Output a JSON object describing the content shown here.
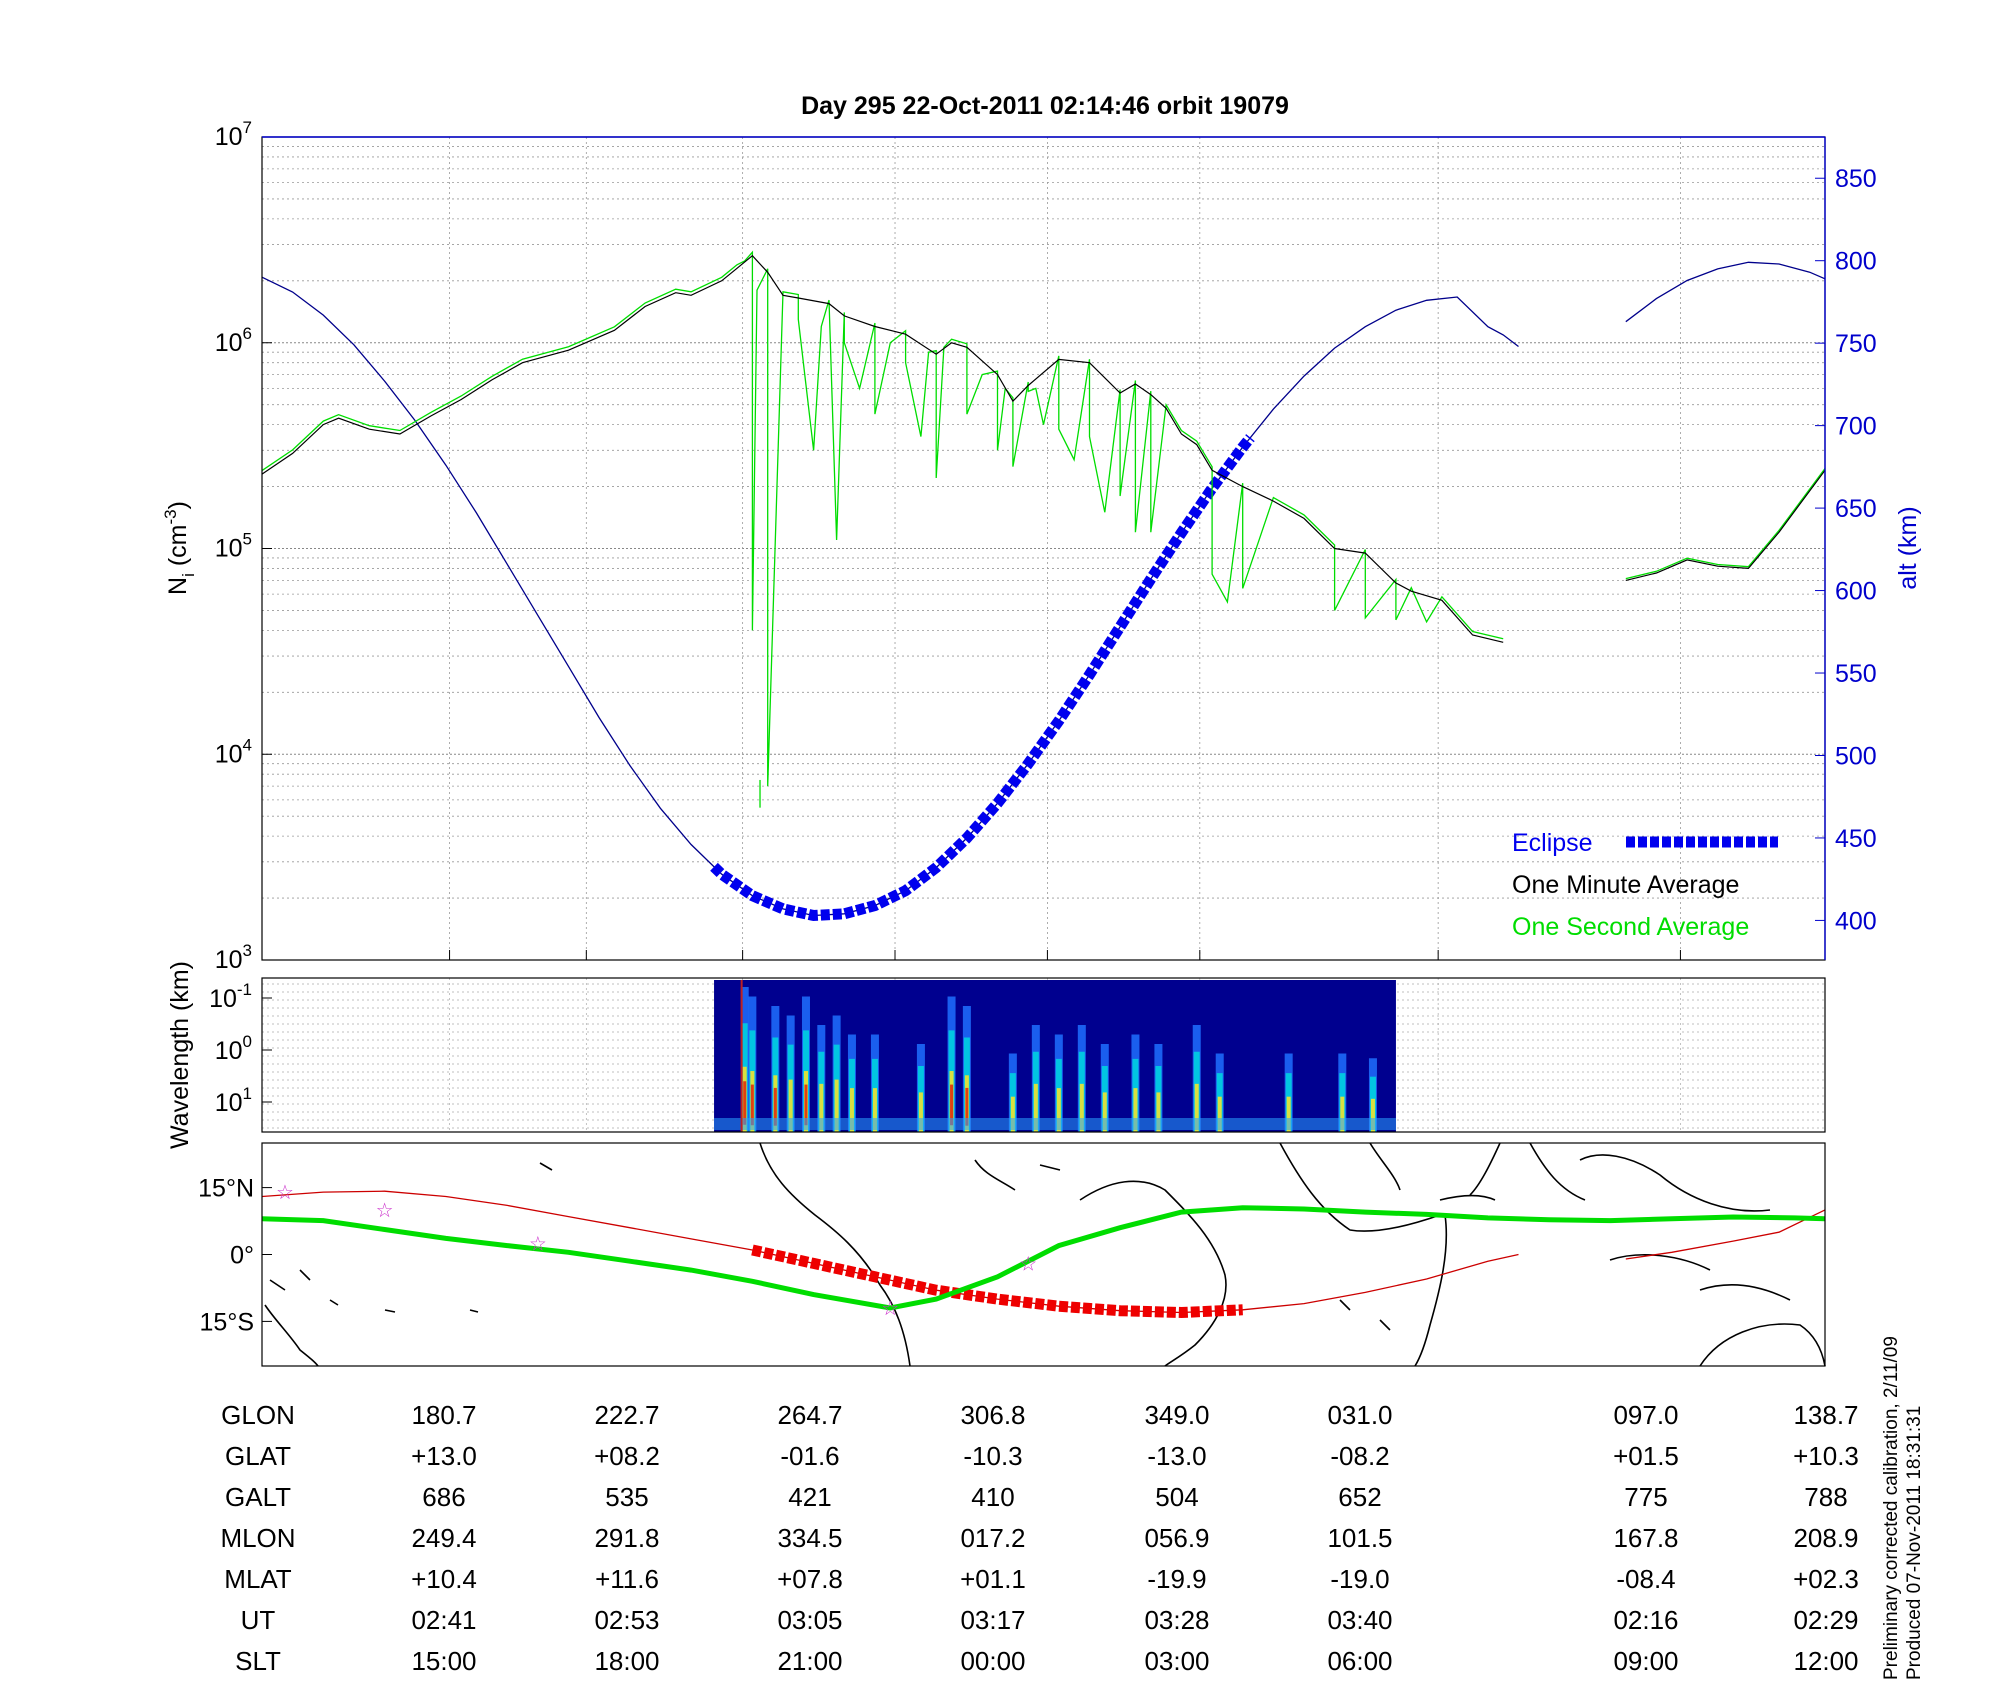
{
  "title": "Day 295  22-Oct-2011 02:14:46   orbit 19079",
  "colors": {
    "density_minute": "#000000",
    "density_second": "#00dd00",
    "altitude": "#00008b",
    "eclipse": "#0000ee",
    "axis_right": "#0000cc",
    "track_red": "#cc0000",
    "track_eclipse": "#ee0000",
    "magnetic_equator": "#00dd00",
    "stars": "#cc33cc",
    "spectrogram_bg": "#00008f"
  },
  "chart_data": [
    {
      "type": "line",
      "name": "density-altitude",
      "ylabel": "N_i (cm^-3)",
      "ylabel_main": "N",
      "ylabel_sub": "i",
      "ylabel_unit_open": " (cm",
      "ylabel_unit_exp": "-3",
      "ylabel_unit_close": ")",
      "y_scale": "log",
      "ylim": [
        1000,
        10000000
      ],
      "y_ticks": [
        {
          "base": "10",
          "exp": "3"
        },
        {
          "base": "10",
          "exp": "4"
        },
        {
          "base": "10",
          "exp": "5"
        },
        {
          "base": "10",
          "exp": "6"
        },
        {
          "base": "10",
          "exp": "7"
        }
      ],
      "y2label": "alt (km)",
      "y2lim": [
        376,
        875
      ],
      "y2_ticks": [
        400,
        450,
        500,
        550,
        600,
        650,
        700,
        750,
        800,
        850
      ],
      "grid": true,
      "x_range_min": [
        0,
        102
      ],
      "gap_min": [
        82,
        89
      ],
      "legend": [
        {
          "label": "Eclipse",
          "color": "#0000ee"
        },
        {
          "label": "One Minute Average",
          "color": "#000000"
        },
        {
          "label": "One Second Average",
          "color": "#00dd00"
        }
      ],
      "density_minute": [
        [
          0,
          230000
        ],
        [
          2,
          290000
        ],
        [
          4,
          400000
        ],
        [
          5,
          430000
        ],
        [
          7,
          380000
        ],
        [
          9,
          360000
        ],
        [
          11,
          440000
        ],
        [
          13,
          530000
        ],
        [
          15,
          660000
        ],
        [
          17,
          800000
        ],
        [
          20,
          920000
        ],
        [
          23,
          1150000
        ],
        [
          25,
          1500000
        ],
        [
          27,
          1750000
        ],
        [
          28,
          1700000
        ],
        [
          30,
          2000000
        ],
        [
          31,
          2300000
        ],
        [
          32,
          2650000
        ],
        [
          33,
          2200000
        ],
        [
          34,
          1700000
        ],
        [
          35,
          1650000
        ],
        [
          37,
          1550000
        ],
        [
          38,
          1350000
        ],
        [
          40,
          1200000
        ],
        [
          42,
          1100000
        ],
        [
          44,
          880000
        ],
        [
          45,
          1000000
        ],
        [
          46,
          950000
        ],
        [
          48,
          700000
        ],
        [
          49,
          520000
        ],
        [
          50,
          620000
        ],
        [
          52,
          830000
        ],
        [
          54,
          800000
        ],
        [
          56,
          570000
        ],
        [
          57,
          630000
        ],
        [
          58,
          560000
        ],
        [
          59,
          480000
        ],
        [
          60,
          360000
        ],
        [
          61,
          320000
        ],
        [
          62,
          240000
        ],
        [
          64,
          200000
        ],
        [
          66,
          170000
        ],
        [
          68,
          140000
        ],
        [
          70,
          100000
        ],
        [
          72,
          95000
        ],
        [
          74,
          68000
        ],
        [
          75,
          62000
        ],
        [
          77,
          56000
        ],
        [
          79,
          38000
        ],
        [
          81,
          35000
        ],
        [
          83,
          40000
        ],
        [
          85,
          48000
        ],
        [
          87,
          50000
        ],
        [
          89,
          47000
        ],
        [
          91,
          55000
        ],
        [
          94,
          63000
        ],
        [
          82.001,
          null
        ],
        [
          89,
          70000
        ],
        [
          91,
          76000
        ],
        [
          93,
          88000
        ],
        [
          95,
          82000
        ],
        [
          97,
          80000
        ],
        [
          99,
          120000
        ],
        [
          102,
          240000
        ]
      ],
      "density_second_spikes": [
        [
          31.5,
          2500000
        ],
        [
          32,
          40000
        ],
        [
          32.3,
          1800000
        ],
        [
          33,
          7000
        ],
        [
          35,
          1300000
        ],
        [
          36,
          300000
        ],
        [
          36.5,
          1200000
        ],
        [
          37.5,
          110000
        ],
        [
          38,
          1000000
        ],
        [
          39,
          600000
        ],
        [
          40,
          450000
        ],
        [
          41,
          1000000
        ],
        [
          42,
          800000
        ],
        [
          43,
          350000
        ],
        [
          43.5,
          900000
        ],
        [
          44,
          220000
        ],
        [
          44.5,
          950000
        ],
        [
          46,
          450000
        ],
        [
          47,
          700000
        ],
        [
          48,
          300000
        ],
        [
          48.5,
          600000
        ],
        [
          49,
          250000
        ],
        [
          50,
          580000
        ],
        [
          50.5,
          600000
        ],
        [
          51,
          400000
        ],
        [
          52,
          380000
        ],
        [
          53,
          270000
        ],
        [
          54,
          350000
        ],
        [
          55,
          150000
        ],
        [
          56,
          180000
        ],
        [
          57,
          120000
        ],
        [
          58,
          120000
        ],
        [
          62,
          75000
        ],
        [
          63,
          55000
        ],
        [
          64,
          64000
        ],
        [
          70,
          50000
        ],
        [
          72,
          46000
        ],
        [
          74,
          45000
        ],
        [
          76,
          44000
        ]
      ],
      "altitude": [
        [
          0,
          790
        ],
        [
          2,
          781
        ],
        [
          4,
          767
        ],
        [
          6,
          749
        ],
        [
          8,
          727
        ],
        [
          10,
          703
        ],
        [
          12,
          676
        ],
        [
          14,
          647
        ],
        [
          16,
          616
        ],
        [
          18,
          585
        ],
        [
          20,
          554
        ],
        [
          22,
          523
        ],
        [
          24,
          494
        ],
        [
          26,
          468
        ],
        [
          28,
          446
        ],
        [
          30,
          428
        ],
        [
          32,
          415
        ],
        [
          34,
          407
        ],
        [
          36,
          403
        ],
        [
          38,
          404
        ],
        [
          40,
          409
        ],
        [
          42,
          418
        ],
        [
          44,
          432
        ],
        [
          46,
          450
        ],
        [
          48,
          471
        ],
        [
          50,
          495
        ],
        [
          52,
          521
        ],
        [
          54,
          549
        ],
        [
          56,
          578
        ],
        [
          58,
          607
        ],
        [
          60,
          635
        ],
        [
          62,
          662
        ],
        [
          64,
          687
        ],
        [
          66,
          710
        ],
        [
          68,
          730
        ],
        [
          70,
          747
        ],
        [
          72,
          760
        ],
        [
          74,
          770
        ],
        [
          76,
          776
        ],
        [
          78,
          778
        ],
        [
          80,
          760
        ],
        [
          81,
          755
        ],
        [
          82,
          748
        ]
      ],
      "altitude_late": [
        [
          89,
          763
        ],
        [
          91,
          777
        ],
        [
          93,
          788
        ],
        [
          95,
          795
        ],
        [
          97,
          799
        ],
        [
          99,
          798
        ],
        [
          101,
          793
        ],
        [
          102,
          789
        ]
      ],
      "eclipse_min": [
        29.5,
        64.5
      ]
    },
    {
      "type": "heatmap",
      "name": "wavelength-spectrogram",
      "ylabel": "Wavelength (km)",
      "y_scale": "log",
      "y_ticks": [
        {
          "base": "10",
          "exp": "-1"
        },
        {
          "base": "10",
          "exp": "0"
        },
        {
          "base": "10",
          "exp": "1"
        }
      ],
      "grid": true,
      "data_min": [
        29.5,
        74
      ],
      "bursts": [
        [
          31.5,
          1.0
        ],
        [
          32.0,
          0.9
        ],
        [
          33.5,
          0.8
        ],
        [
          34.5,
          0.7
        ],
        [
          35.5,
          0.9
        ],
        [
          36.5,
          0.6
        ],
        [
          37.5,
          0.7
        ],
        [
          38.5,
          0.5
        ],
        [
          40.0,
          0.5
        ],
        [
          43.0,
          0.4
        ],
        [
          45.0,
          0.9
        ],
        [
          46.0,
          0.8
        ],
        [
          49.0,
          0.3
        ],
        [
          50.5,
          0.6
        ],
        [
          52.0,
          0.5
        ],
        [
          53.5,
          0.6
        ],
        [
          55.0,
          0.4
        ],
        [
          57.0,
          0.5
        ],
        [
          58.5,
          0.4
        ],
        [
          61.0,
          0.6
        ],
        [
          62.5,
          0.3
        ],
        [
          67.0,
          0.3
        ],
        [
          70.5,
          0.3
        ],
        [
          72.5,
          0.25
        ]
      ]
    },
    {
      "type": "line",
      "name": "ground-track-map",
      "lat_labels": [
        "15°N",
        "0°",
        "15°S"
      ],
      "lat_values": [
        15,
        0,
        -15
      ],
      "ylim": [
        -25,
        25
      ],
      "track": [
        [
          0,
          13
        ],
        [
          4,
          14
        ],
        [
          8,
          14.2
        ],
        [
          12,
          13
        ],
        [
          16,
          11
        ],
        [
          20,
          8.5
        ],
        [
          24,
          6
        ],
        [
          28,
          3.5
        ],
        [
          32,
          1
        ],
        [
          36,
          -2
        ],
        [
          40,
          -5
        ],
        [
          44,
          -8
        ],
        [
          48,
          -10
        ],
        [
          52,
          -11.6
        ],
        [
          56,
          -12.6
        ],
        [
          60,
          -13
        ],
        [
          64,
          -12.4
        ],
        [
          68,
          -11
        ],
        [
          72,
          -8.5
        ],
        [
          76,
          -5.5
        ],
        [
          80,
          -1.5
        ],
        [
          82,
          0
        ],
        [
          89,
          -1
        ],
        [
          92,
          0.5
        ],
        [
          96,
          3
        ],
        [
          99,
          5
        ],
        [
          102,
          10
        ]
      ],
      "magnetic_equator": [
        [
          0,
          8
        ],
        [
          4,
          7.6
        ],
        [
          8,
          5.6
        ],
        [
          12,
          3.6
        ],
        [
          16,
          2
        ],
        [
          20,
          0.5
        ],
        [
          24,
          -1.5
        ],
        [
          28,
          -3.5
        ],
        [
          32,
          -6
        ],
        [
          36,
          -9
        ],
        [
          41,
          -12
        ],
        [
          44,
          -10
        ],
        [
          48,
          -5
        ],
        [
          52,
          2
        ],
        [
          56,
          6
        ],
        [
          60,
          9.5
        ],
        [
          64,
          10.5
        ],
        [
          68,
          10.2
        ],
        [
          72,
          9.5
        ],
        [
          76,
          9
        ],
        [
          80,
          8.2
        ],
        [
          84,
          7.8
        ],
        [
          88,
          7.6
        ],
        [
          92,
          8
        ],
        [
          96,
          8.4
        ],
        [
          100,
          8.2
        ],
        [
          102,
          8
        ]
      ],
      "stars": [
        [
          1.5,
          14
        ],
        [
          8,
          10
        ],
        [
          18,
          2.5
        ],
        [
          41,
          -12
        ],
        [
          50,
          -2
        ]
      ]
    }
  ],
  "table": {
    "rows": [
      {
        "label": "GLON",
        "values": [
          "180.7",
          "222.7",
          "264.7",
          "306.8",
          "349.0",
          "031.0",
          "097.0",
          "138.7"
        ]
      },
      {
        "label": "GLAT",
        "values": [
          "+13.0",
          "+08.2",
          "-01.6",
          "-10.3",
          "-13.0",
          "-08.2",
          "+01.5",
          "+10.3"
        ]
      },
      {
        "label": "GALT",
        "values": [
          "686",
          "535",
          "421",
          "410",
          "504",
          "652",
          "775",
          "788"
        ]
      },
      {
        "label": "MLON",
        "values": [
          "249.4",
          "291.8",
          "334.5",
          "017.2",
          "056.9",
          "101.5",
          "167.8",
          "208.9"
        ]
      },
      {
        "label": "MLAT",
        "values": [
          "+10.4",
          "+11.6",
          "+07.8",
          "+01.1",
          "-19.9",
          "-19.0",
          "-08.4",
          "+02.3"
        ]
      },
      {
        "label": "UT",
        "values": [
          "02:41",
          "02:53",
          "03:05",
          "03:17",
          "03:28",
          "03:40",
          "02:16",
          "02:29"
        ]
      },
      {
        "label": "SLT",
        "values": [
          "15:00",
          "18:00",
          "21:00",
          "00:00",
          "03:00",
          "06:00",
          "09:00",
          "12:00"
        ]
      }
    ]
  },
  "footer": {
    "calibration": "Preliminary corrected calibration, 2/11/09",
    "produced": "Produced 07-Nov-2011 18:31:31"
  }
}
